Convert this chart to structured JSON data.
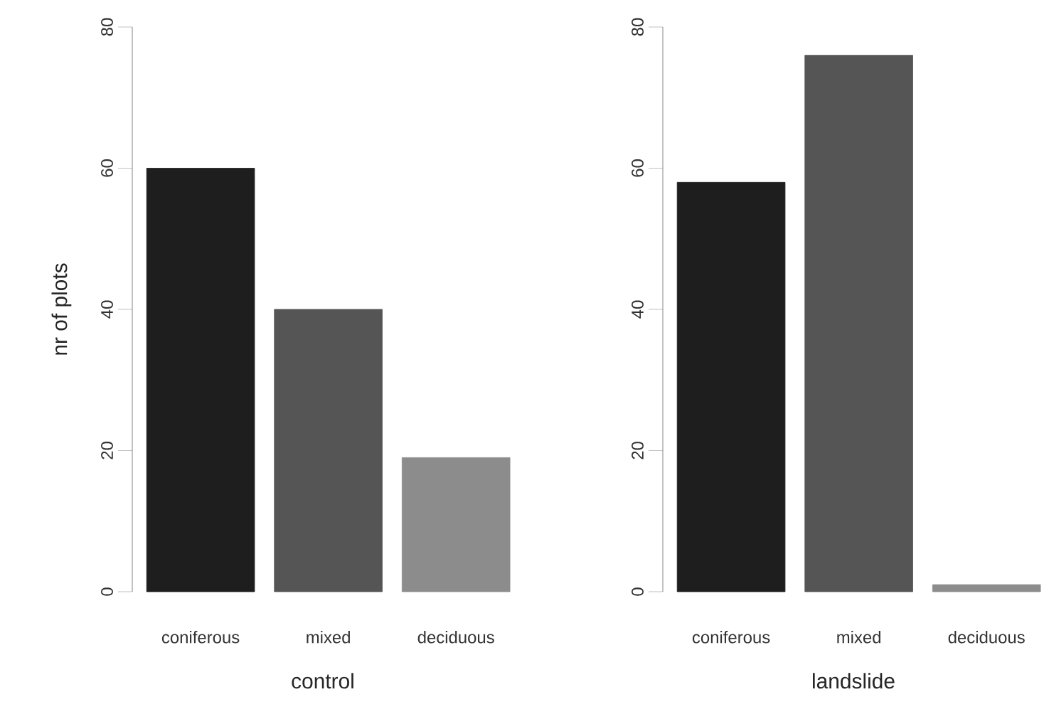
{
  "chart_data": [
    {
      "type": "bar",
      "xlabel": "control",
      "ylabel": "nr of plots",
      "categories": [
        "coniferous",
        "mixed",
        "deciduous"
      ],
      "values": [
        60,
        40,
        19
      ],
      "colors": [
        "#1e1e1e",
        "#555555",
        "#8c8c8c"
      ],
      "ylim": [
        0,
        80
      ],
      "yticks": [
        0,
        20,
        40,
        60,
        80
      ]
    },
    {
      "type": "bar",
      "xlabel": "landslide",
      "categories": [
        "coniferous",
        "mixed",
        "deciduous"
      ],
      "values": [
        58,
        76,
        1
      ],
      "colors": [
        "#1e1e1e",
        "#555555",
        "#8c8c8c"
      ],
      "ylim": [
        0,
        80
      ],
      "yticks": [
        0,
        20,
        40,
        60,
        80
      ]
    }
  ]
}
